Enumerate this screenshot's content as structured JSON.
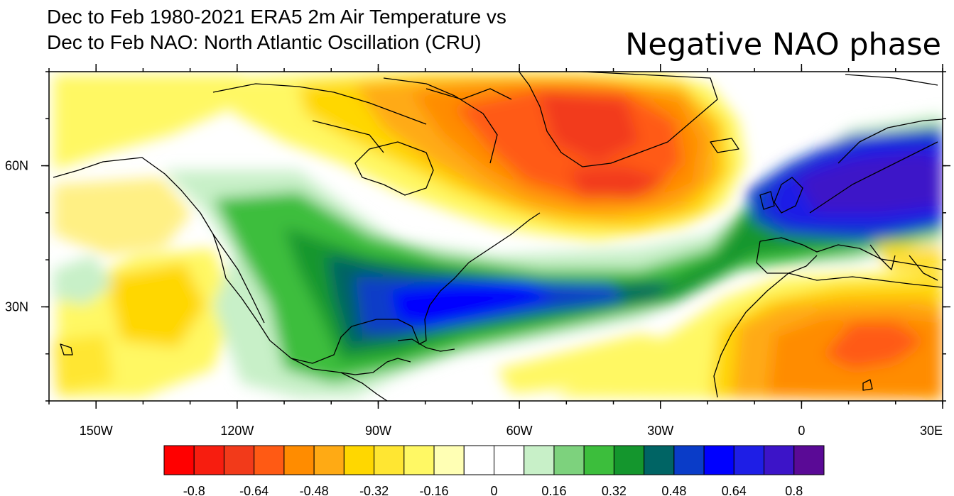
{
  "header": {
    "title_line1": "Dec to Feb 1980-2021 ERA5 2m Air Temperature vs",
    "title_line2": "Dec to Feb NAO: North Atlantic Oscillation (CRU)",
    "phase_label": "Negative NAO phase"
  },
  "map": {
    "lon_range": [
      -160,
      30
    ],
    "lat_range": [
      10,
      80
    ],
    "lon_ticks": [
      {
        "value": -150,
        "label": "150W"
      },
      {
        "value": -120,
        "label": "120W"
      },
      {
        "value": -90,
        "label": "90W"
      },
      {
        "value": -60,
        "label": "60W"
      },
      {
        "value": -30,
        "label": "30W"
      },
      {
        "value": 0,
        "label": "0"
      },
      {
        "value": 30,
        "label": "30E"
      }
    ],
    "lat_ticks": [
      {
        "value": 60,
        "label": "60N"
      },
      {
        "value": 30,
        "label": "30N"
      }
    ]
  },
  "colorbar": {
    "colors": [
      "#ff0000",
      "#f71d0f",
      "#f23a1a",
      "#ff5a14",
      "#ff8c00",
      "#ffaa14",
      "#ffd700",
      "#ffe632",
      "#fff864",
      "#ffffb4",
      "#ffffff",
      "#ffffff",
      "#c8f0c8",
      "#7dd27d",
      "#3cbe3c",
      "#14962d",
      "#006464",
      "#0a3cc8",
      "#0000ff",
      "#1e1ee6",
      "#3c14c8",
      "#5a0a96"
    ],
    "labels": [
      {
        "after_box": 1,
        "text": "-0.8"
      },
      {
        "after_box": 3,
        "text": "-0.64"
      },
      {
        "after_box": 5,
        "text": "-0.48"
      },
      {
        "after_box": 7,
        "text": "-0.32"
      },
      {
        "after_box": 9,
        "text": "-0.16"
      },
      {
        "after_box": 11,
        "text": "0"
      },
      {
        "after_box": 13,
        "text": "0.16"
      },
      {
        "after_box": 15,
        "text": "0.32"
      },
      {
        "after_box": 17,
        "text": "0.48"
      },
      {
        "after_box": 19,
        "text": "0.64"
      },
      {
        "after_box": 21,
        "text": "0.8"
      }
    ]
  }
}
